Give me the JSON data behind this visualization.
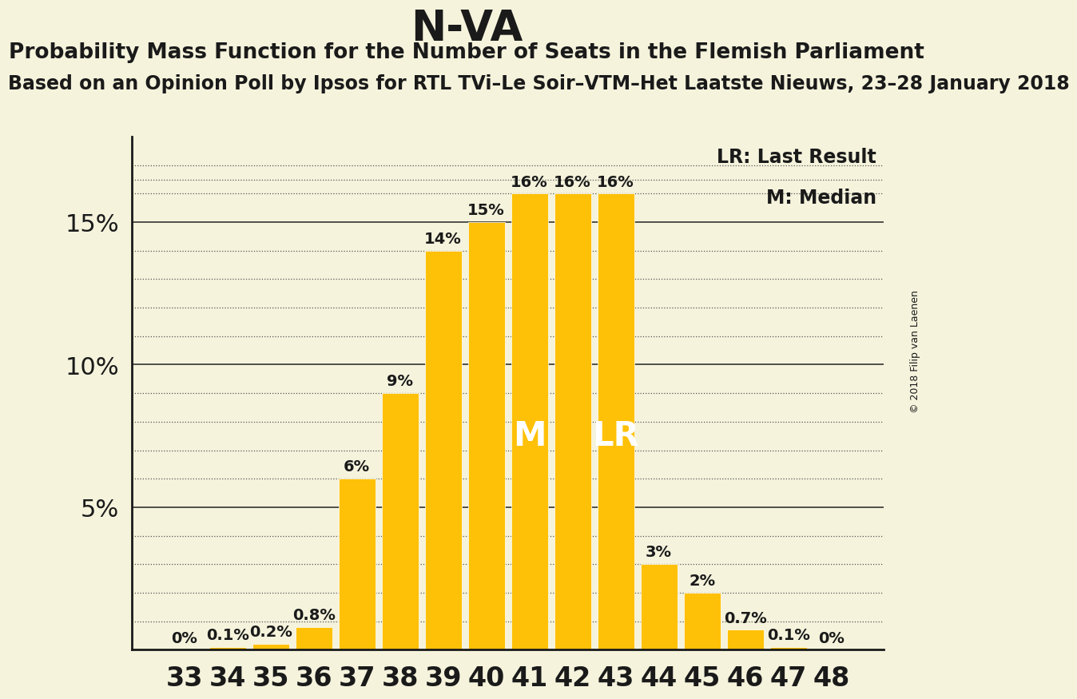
{
  "title": "N-VA",
  "subtitle": "Probability Mass Function for the Number of Seats in the Flemish Parliament",
  "subtitle2": "Based on an Opinion Poll by Ipsos for RTL TVi–Le Soir–VTM–Het Laatste Nieuws, 23–28 January 2018",
  "copyright": "© 2018 Filip van Laenen",
  "seats": [
    33,
    34,
    35,
    36,
    37,
    38,
    39,
    40,
    41,
    42,
    43,
    44,
    45,
    46,
    47,
    48
  ],
  "probabilities": [
    0.0,
    0.1,
    0.2,
    0.8,
    6.0,
    9.0,
    14.0,
    15.0,
    16.0,
    16.0,
    16.0,
    3.0,
    2.0,
    0.7,
    0.1,
    0.0
  ],
  "labels": [
    "0%",
    "0.1%",
    "0.2%",
    "0.8%",
    "6%",
    "9%",
    "14%",
    "15%",
    "16%",
    "16%",
    "16%",
    "3%",
    "2%",
    "0.7%",
    "0.1%",
    "0%"
  ],
  "bar_color": "#FFC107",
  "background_color": "#F5F3DC",
  "median_seat": 41,
  "lr_seat": 43,
  "ylim": [
    0,
    18
  ],
  "legend_lr": "LR: Last Result",
  "legend_m": "M: Median",
  "axis_color": "#1a1a1a",
  "text_color": "#1a1a1a",
  "title_fontsize": 38,
  "subtitle_fontsize": 19,
  "subtitle2_fontsize": 17,
  "label_fontsize": 14,
  "ytick_fontsize": 22,
  "xtick_fontsize": 24,
  "marker_fontsize": 30,
  "legend_fontsize": 17
}
